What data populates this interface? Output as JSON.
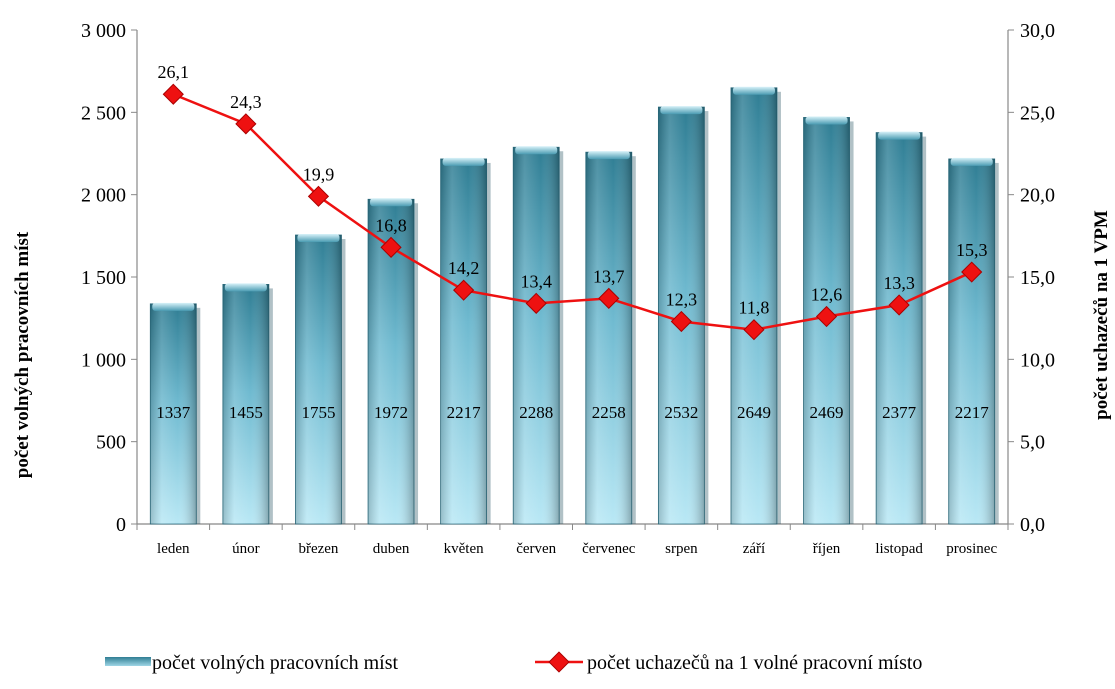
{
  "chart_data": {
    "type": "bar+line",
    "categories": [
      "leden",
      "únor",
      "březen",
      "duben",
      "květen",
      "červen",
      "červenec",
      "srpen",
      "září",
      "říjen",
      "listopad",
      "prosinec"
    ],
    "series": [
      {
        "name": "počet volných pracovních míst",
        "type": "bar",
        "axis": "left",
        "values": [
          1337,
          1455,
          1755,
          1972,
          2217,
          2288,
          2258,
          2532,
          2649,
          2469,
          2377,
          2217
        ],
        "labels": [
          "1337",
          "1455",
          "1755",
          "1972",
          "2217",
          "2288",
          "2258",
          "2532",
          "2649",
          "2469",
          "2377",
          "2217"
        ],
        "color": "#3a8aa3"
      },
      {
        "name": "počet uchazečů na 1 volné pracovní místo",
        "type": "line",
        "axis": "right",
        "values": [
          26.1,
          24.3,
          19.9,
          16.8,
          14.2,
          13.4,
          13.7,
          12.3,
          11.8,
          12.6,
          13.3,
          15.3
        ],
        "labels": [
          "26,1",
          "24,3",
          "19,9",
          "16,8",
          "14,2",
          "13,4",
          "13,7",
          "12,3",
          "11,8",
          "12,6",
          "13,3",
          "15,3"
        ],
        "color": "#ee1111"
      }
    ],
    "y_left": {
      "label": "počet volných pracovních míst",
      "ylim": [
        0,
        3000
      ],
      "ticks": [
        0,
        500,
        1000,
        1500,
        2000,
        2500,
        3000
      ],
      "tick_labels": [
        "0",
        "500",
        "1 000",
        "1 500",
        "2 000",
        "2 500",
        "3 000"
      ]
    },
    "y_right": {
      "label": "počet uchazečů na 1 VPM",
      "ylim": [
        0,
        30
      ],
      "ticks": [
        0,
        5,
        10,
        15,
        20,
        25,
        30
      ],
      "tick_labels": [
        "0,0",
        "5,0",
        "10,0",
        "15,0",
        "20,0",
        "25,0",
        "30,0"
      ]
    },
    "grid": false,
    "legend_position": "bottom"
  }
}
